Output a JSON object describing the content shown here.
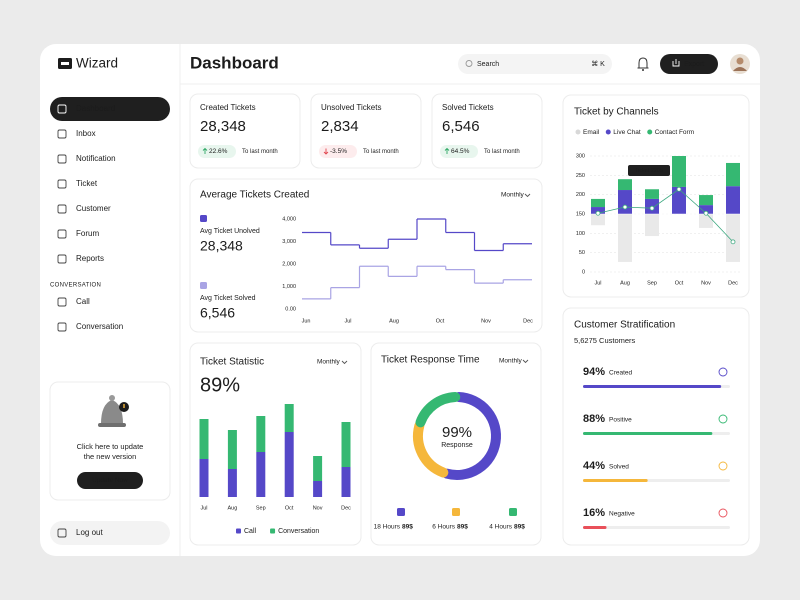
{
  "sidebar": {
    "brand": "Wizard",
    "nav": [
      {
        "label": "Dashboard",
        "active": true
      },
      {
        "label": "Inbox",
        "active": false
      },
      {
        "label": "Notification",
        "active": false
      },
      {
        "label": "Ticket",
        "active": false
      },
      {
        "label": "Customer",
        "active": false
      },
      {
        "label": "Forum",
        "active": false
      },
      {
        "label": "Reports",
        "active": false
      }
    ],
    "section": "CONVERSATION",
    "conversation_nav": [
      "Call",
      "Conversation"
    ],
    "update_card": {
      "line_1": "Click here to update",
      "line_2": "the new version",
      "button": "Update Now"
    },
    "logout": "Log out"
  },
  "header": {
    "title": "Dashboard",
    "search": "Search",
    "shortcut": "⌘ K",
    "export": "Export"
  },
  "stats": [
    {
      "label": "Created Tickets",
      "value": "28,348",
      "change": "22.6%",
      "trend": "up",
      "note": "To last month"
    },
    {
      "label": "Unsolved Tickets",
      "value": "2,834",
      "change": "-3.5%",
      "trend": "down",
      "note": "To last month"
    },
    {
      "label": "Solved Tickets",
      "value": "6,546",
      "change": "64.5%",
      "trend": "up",
      "note": "To last month"
    }
  ],
  "avg_tickets": {
    "type": "step",
    "title": "Average Tickets Created",
    "period": "Monthly",
    "series": [
      {
        "name": "Avg Ticket Unolved",
        "total": "28,348",
        "color": "#5548c8",
        "x": [
          0,
          1,
          2,
          3,
          4,
          5,
          6,
          7
        ],
        "values": [
          3400,
          2850,
          2700,
          3100,
          4000,
          3400,
          2600,
          2900
        ]
      },
      {
        "name": "Avg Ticket Solved",
        "total": "6,546",
        "color": "#a9a4e4",
        "x": [
          0,
          1,
          2,
          3,
          4,
          5,
          6,
          7
        ],
        "values": [
          450,
          950,
          1900,
          1450,
          1900,
          1750,
          1150,
          1300
        ]
      }
    ],
    "xlim": [
      0,
      8
    ],
    "xticks": [
      {
        "value": 0,
        "label": "Jun"
      },
      {
        "value": 1.6,
        "label": "Jul"
      },
      {
        "value": 3.2,
        "label": "Aug"
      },
      {
        "value": 4.8,
        "label": "Oct"
      },
      {
        "value": 6.4,
        "label": "Nov"
      },
      {
        "value": 8,
        "label": "Dec"
      }
    ],
    "ylim": [
      0,
      4000
    ],
    "yticks": [
      {
        "value": 0,
        "label": "0.00"
      },
      {
        "value": 1000,
        "label": "1,000"
      },
      {
        "value": 2000,
        "label": "2,000"
      },
      {
        "value": 3000,
        "label": "3,000"
      },
      {
        "value": 4000,
        "label": "4,000"
      }
    ]
  },
  "ticket_statistic": {
    "type": "stacked_bar",
    "title": "Ticket Statistic",
    "period": "Monthly",
    "headline": "89%",
    "categories": [
      "Jul",
      "Aug",
      "Sep",
      "Oct",
      "Nov",
      "Dec"
    ],
    "series": [
      {
        "name": "Call",
        "color": "#5548c8",
        "values": [
          38,
          28,
          45,
          65,
          16,
          30
        ]
      },
      {
        "name": "Conversation",
        "color": "#35b872",
        "values": [
          40,
          39,
          36,
          28,
          25,
          45
        ]
      }
    ]
  },
  "response_time": {
    "type": "donut",
    "title": "Ticket Response Time",
    "period": "Monthly",
    "center_value": "99%",
    "center_label": "Response",
    "segments": [
      {
        "label": "18 Hours",
        "amount": "89$",
        "color": "#5548c8",
        "value": 55
      },
      {
        "label": "6 Hours",
        "amount": "89$",
        "color": "#f5b73b",
        "value": 25
      },
      {
        "label": "4 Hours",
        "amount": "89$",
        "color": "#35b872",
        "value": 20
      }
    ]
  },
  "channels": {
    "type": "diverging_bar",
    "title": "Ticket by Channels",
    "categories": [
      "Jul",
      "Aug",
      "Sep",
      "Oct",
      "Nov",
      "Dec"
    ],
    "baseline": 150,
    "series": [
      {
        "name": "Email",
        "color": "#e9e9e9",
        "side": "below",
        "values": [
          29,
          124,
          57,
          0,
          36,
          124
        ]
      },
      {
        "name": "Live Chat",
        "color": "#5548c8",
        "side": "above",
        "values": [
          18,
          62,
          39,
          70,
          23,
          72
        ]
      },
      {
        "name": "Contact Form",
        "color": "#35b872",
        "side": "above",
        "values": [
          21,
          28,
          25,
          80,
          26,
          60
        ]
      }
    ],
    "line_values": [
      152,
      168,
      165,
      214,
      152,
      78
    ],
    "line_color": "#3aa77e",
    "tooltip": "Ticket 2205",
    "ylim": [
      0,
      300
    ],
    "yticks": [
      0,
      50,
      100,
      150,
      200,
      250,
      300
    ]
  },
  "stratification": {
    "title": "Customer Stratification",
    "subtitle": "5,6275 Customers",
    "items": [
      {
        "value": 94,
        "value_label": "94%",
        "label": "Created",
        "color": "#5548c8"
      },
      {
        "value": 88,
        "value_label": "88%",
        "label": "Positive",
        "color": "#35b872"
      },
      {
        "value": 44,
        "value_label": "44%",
        "label": "Solved",
        "color": "#f5b73b"
      },
      {
        "value": 16,
        "value_label": "16%",
        "label": "Negative",
        "color": "#e9505a"
      }
    ]
  }
}
